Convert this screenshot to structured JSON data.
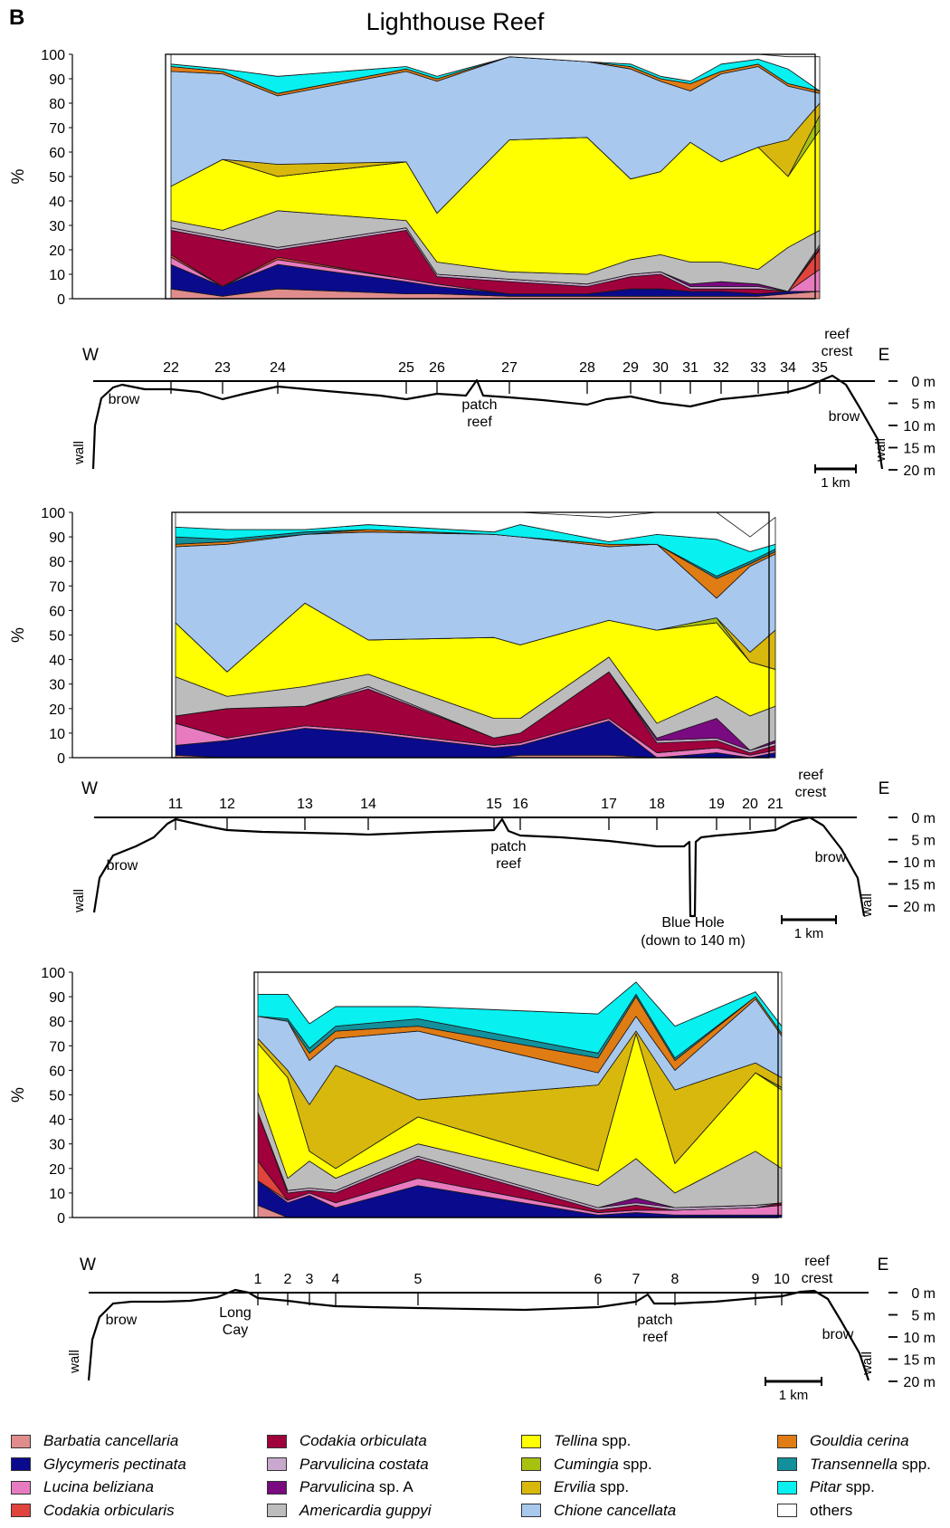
{
  "panel_letter": "B",
  "title": "Lighthouse Reef",
  "chart_data": [
    {
      "type": "area",
      "stacked": true,
      "ylabel": "%",
      "ylim": [
        0,
        100
      ],
      "yticks": [
        0,
        10,
        20,
        30,
        40,
        50,
        60,
        70,
        80,
        90,
        100
      ],
      "grid": false,
      "x_stations": [
        "22",
        "23",
        "24",
        "25",
        "26",
        "27",
        "28",
        "29",
        "30",
        "31",
        "32",
        "33",
        "34",
        "35"
      ],
      "x_km": [
        0,
        2.0,
        4.1,
        9.0,
        10.2,
        13.0,
        16.0,
        17.6,
        18.8,
        19.9,
        21.0,
        22.4,
        23.5,
        24.5
      ],
      "series": [
        {
          "key": "barbatia",
          "values": [
            4,
            1,
            4,
            2,
            2,
            1,
            1,
            1,
            1,
            1,
            1,
            1,
            2,
            3
          ]
        },
        {
          "key": "glycymeris",
          "values": [
            10,
            4,
            10,
            5,
            3,
            1,
            1,
            3,
            3,
            2,
            2,
            1,
            1,
            0
          ]
        },
        {
          "key": "lucina",
          "values": [
            3,
            0,
            2,
            1,
            1,
            0,
            0,
            0,
            0,
            0,
            0,
            0,
            0,
            9
          ]
        },
        {
          "key": "codakia_orbicularis",
          "values": [
            1,
            0,
            1,
            0,
            0,
            0,
            0,
            0,
            0,
            0,
            0,
            0,
            0,
            8
          ]
        },
        {
          "key": "codakia_orbiculata",
          "values": [
            10,
            19,
            3,
            20,
            3,
            5,
            3,
            5,
            6,
            1,
            1,
            2,
            0,
            1
          ]
        },
        {
          "key": "parvulicina_costata",
          "values": [
            1,
            1,
            1,
            1,
            1,
            1,
            1,
            1,
            1,
            1,
            1,
            1,
            0,
            1
          ]
        },
        {
          "key": "parvulicina_a",
          "values": [
            0,
            0,
            0,
            0,
            0,
            0,
            0,
            0,
            0,
            1,
            2,
            1,
            0,
            0
          ]
        },
        {
          "key": "americardia",
          "values": [
            3,
            3,
            15,
            3,
            5,
            3,
            4,
            6,
            7,
            9,
            8,
            6,
            18,
            6
          ]
        },
        {
          "key": "tellina",
          "values": [
            14,
            29,
            14,
            24,
            20,
            54,
            56,
            33,
            34,
            49,
            41,
            50,
            29,
            41
          ]
        },
        {
          "key": "cumingia",
          "values": [
            0,
            0,
            0,
            0,
            0,
            0,
            0,
            0,
            0,
            0,
            0,
            0,
            0,
            6
          ]
        },
        {
          "key": "ervilia",
          "values": [
            0,
            0,
            5,
            0,
            0,
            0,
            0,
            0,
            0,
            0,
            0,
            0,
            15,
            5
          ]
        },
        {
          "key": "chione",
          "values": [
            47,
            35,
            28,
            37,
            54,
            34,
            31,
            45,
            37,
            21,
            36,
            33,
            22,
            4
          ]
        },
        {
          "key": "gouldia",
          "values": [
            2,
            1,
            1,
            1,
            1,
            0,
            0,
            1,
            1,
            3,
            1,
            1,
            1,
            1
          ]
        },
        {
          "key": "transennella",
          "values": [
            0,
            0,
            0,
            0,
            0,
            0,
            0,
            0,
            0,
            0,
            0,
            0,
            0,
            0
          ]
        },
        {
          "key": "pitar",
          "values": [
            1,
            1,
            7,
            1,
            1,
            0,
            0,
            1,
            1,
            1,
            3,
            2,
            6,
            0
          ]
        },
        {
          "key": "others",
          "values": [
            4,
            6,
            9,
            5,
            9,
            1,
            3,
            4,
            9,
            11,
            4,
            4,
            5,
            14
          ]
        }
      ],
      "profile": {
        "directions": [
          "W",
          "E"
        ],
        "labels": [
          "brow",
          "patch reef",
          "reef crest",
          "brow",
          "wall",
          "wall"
        ],
        "depth_labels": [
          "0 m",
          "5 m",
          "10 m",
          "15 m",
          "20 m"
        ],
        "scale_label": "1 km"
      }
    },
    {
      "type": "area",
      "stacked": true,
      "ylabel": "%",
      "ylim": [
        0,
        100
      ],
      "yticks": [
        0,
        10,
        20,
        30,
        40,
        50,
        60,
        70,
        80,
        90,
        100
      ],
      "grid": false,
      "x_stations": [
        "11",
        "12",
        "13",
        "14",
        "15",
        "16",
        "17",
        "18",
        "19",
        "20",
        "21"
      ],
      "x_km": [
        0,
        1.3,
        3.3,
        4.9,
        8.2,
        8.8,
        11.1,
        12.3,
        13.9,
        14.8,
        15.3
      ],
      "series": [
        {
          "key": "barbatia",
          "values": [
            1,
            0,
            0,
            0,
            0,
            1,
            1,
            0,
            0,
            0,
            0
          ]
        },
        {
          "key": "glycymeris",
          "values": [
            4,
            7,
            12,
            10,
            4,
            4,
            14,
            0,
            2,
            0,
            2
          ]
        },
        {
          "key": "lucina",
          "values": [
            9,
            1,
            1,
            1,
            1,
            1,
            1,
            2,
            2,
            1,
            1
          ]
        },
        {
          "key": "codakia_orbicularis",
          "values": [
            0,
            0,
            0,
            0,
            0,
            0,
            0,
            0,
            0,
            0,
            0
          ]
        },
        {
          "key": "codakia_orbiculata",
          "values": [
            3,
            12,
            8,
            17,
            3,
            4,
            19,
            4,
            3,
            1,
            2
          ]
        },
        {
          "key": "parvulicina_costata",
          "values": [
            0,
            0,
            0,
            1,
            0,
            0,
            0,
            1,
            1,
            1,
            1
          ]
        },
        {
          "key": "parvulicina_a",
          "values": [
            0,
            0,
            0,
            0,
            0,
            0,
            0,
            1,
            8,
            0,
            1
          ]
        },
        {
          "key": "americardia",
          "values": [
            16,
            5,
            8,
            5,
            8,
            6,
            6,
            6,
            9,
            14,
            14
          ]
        },
        {
          "key": "tellina",
          "values": [
            22,
            10,
            34,
            14,
            33,
            30,
            15,
            38,
            30,
            22,
            15
          ]
        },
        {
          "key": "cumingia",
          "values": [
            0,
            0,
            0,
            0,
            0,
            0,
            0,
            0,
            2,
            0,
            0
          ]
        },
        {
          "key": "ervilia",
          "values": [
            0,
            0,
            0,
            0,
            0,
            0,
            0,
            0,
            0,
            4,
            16
          ]
        },
        {
          "key": "chione",
          "values": [
            31,
            52,
            28,
            44,
            42,
            44,
            30,
            35,
            8,
            35,
            31
          ]
        },
        {
          "key": "gouldia",
          "values": [
            1,
            1,
            0,
            1,
            0,
            0,
            1,
            0,
            8,
            1,
            1
          ]
        },
        {
          "key": "transennella",
          "values": [
            3,
            1,
            1,
            0,
            0,
            0,
            0,
            0,
            1,
            1,
            1
          ]
        },
        {
          "key": "pitar",
          "values": [
            4,
            4,
            1,
            2,
            1,
            5,
            1,
            4,
            15,
            4,
            2
          ]
        },
        {
          "key": "others",
          "values": [
            6,
            7,
            7,
            5,
            8,
            5,
            10,
            9,
            11,
            6,
            11
          ]
        }
      ],
      "profile": {
        "directions": [
          "W",
          "E"
        ],
        "labels": [
          "brow",
          "patch reef",
          "reef crest",
          "brow",
          "wall",
          "wall",
          "Blue Hole",
          "(down to 140 m)"
        ],
        "depth_labels": [
          "0 m",
          "5 m",
          "10 m",
          "15 m",
          "20 m"
        ],
        "scale_label": "1 km"
      }
    },
    {
      "type": "area",
      "stacked": true,
      "ylabel": "%",
      "ylim": [
        0,
        100
      ],
      "yticks": [
        0,
        10,
        20,
        30,
        40,
        50,
        60,
        70,
        80,
        90,
        100
      ],
      "grid": false,
      "x_stations": [
        "1",
        "2",
        "3",
        "4",
        "5",
        "6",
        "7",
        "8",
        "9",
        "10"
      ],
      "x_km": [
        0,
        0.9,
        1.5,
        2.2,
        4.4,
        9.0,
        10.3,
        11.3,
        13.5,
        14.3
      ],
      "series": [
        {
          "key": "barbatia",
          "values": [
            5,
            0,
            0,
            0,
            0,
            0,
            0,
            0,
            0,
            0
          ]
        },
        {
          "key": "glycymeris",
          "values": [
            10,
            6,
            9,
            4,
            13,
            1,
            2,
            1,
            1,
            1
          ]
        },
        {
          "key": "lucina",
          "values": [
            0,
            1,
            1,
            2,
            3,
            1,
            1,
            2,
            3,
            4
          ]
        },
        {
          "key": "codakia_orbicularis",
          "values": [
            8,
            0,
            0,
            0,
            0,
            0,
            0,
            0,
            0,
            0
          ]
        },
        {
          "key": "codakia_orbiculata",
          "values": [
            20,
            3,
            1,
            4,
            8,
            1,
            2,
            0,
            0,
            1
          ]
        },
        {
          "key": "parvulicina_costata",
          "values": [
            0,
            1,
            1,
            1,
            1,
            1,
            1,
            1,
            1,
            0
          ]
        },
        {
          "key": "parvulicina_a",
          "values": [
            0,
            0,
            0,
            0,
            0,
            0,
            2,
            0,
            0,
            0
          ]
        },
        {
          "key": "americardia",
          "values": [
            8,
            5,
            11,
            5,
            5,
            9,
            16,
            6,
            22,
            14
          ]
        },
        {
          "key": "tellina",
          "values": [
            20,
            41,
            4,
            4,
            11,
            6,
            51,
            12,
            32,
            32
          ]
        },
        {
          "key": "cumingia",
          "values": [
            0,
            0,
            0,
            0,
            0,
            0,
            0,
            0,
            0,
            1
          ]
        },
        {
          "key": "ervilia",
          "values": [
            2,
            3,
            19,
            42,
            7,
            35,
            1,
            30,
            4,
            4
          ]
        },
        {
          "key": "chione",
          "values": [
            9,
            20,
            18,
            11,
            28,
            5,
            6,
            8,
            26,
            17
          ]
        },
        {
          "key": "gouldia",
          "values": [
            0,
            0,
            3,
            3,
            2,
            6,
            8,
            4,
            1,
            1
          ]
        },
        {
          "key": "transennella",
          "values": [
            0,
            1,
            2,
            2,
            3,
            2,
            1,
            1,
            0,
            0
          ]
        },
        {
          "key": "pitar",
          "values": [
            9,
            10,
            10,
            8,
            5,
            16,
            5,
            13,
            2,
            3
          ]
        },
        {
          "key": "others",
          "values": [
            9,
            9,
            21,
            14,
            14,
            17,
            4,
            22,
            8,
            22
          ]
        }
      ],
      "profile": {
        "directions": [
          "W",
          "E"
        ],
        "labels": [
          "brow",
          "Long Cay",
          "patch reef",
          "reef crest",
          "brow",
          "wall",
          "wall"
        ],
        "depth_labels": [
          "0 m",
          "5 m",
          "10 m",
          "15 m",
          "20 m"
        ],
        "scale_label": "1 km"
      }
    }
  ],
  "legend": [
    {
      "key": "barbatia",
      "italic": "Barbatia cancellaria",
      "rest": "",
      "color": "#e08c8c"
    },
    {
      "key": "glycymeris",
      "italic": "Glycymeris pectinata",
      "rest": "",
      "color": "#0a0a8c"
    },
    {
      "key": "lucina",
      "italic": "Lucina beliziana",
      "rest": "",
      "color": "#e87bc0"
    },
    {
      "key": "codakia_orbicularis",
      "italic": "Codakia orbicularis",
      "rest": "",
      "color": "#e0443c"
    },
    {
      "key": "codakia_orbiculata",
      "italic": "Codakia orbiculata",
      "rest": "",
      "color": "#a0003c"
    },
    {
      "key": "parvulicina_costata",
      "italic": "Parvulicina costata",
      "rest": "",
      "color": "#c8a8cc"
    },
    {
      "key": "parvulicina_a",
      "italic": "Parvulicina",
      "rest": " sp. A",
      "color": "#7a0a80"
    },
    {
      "key": "americardia",
      "italic": "Americardia guppyi",
      "rest": "",
      "color": "#bcbcbc"
    },
    {
      "key": "tellina",
      "italic": "Tellina",
      "rest": " spp.",
      "color": "#ffff00"
    },
    {
      "key": "cumingia",
      "italic": "Cumingia",
      "rest": " spp.",
      "color": "#a8c010"
    },
    {
      "key": "ervilia",
      "italic": "Ervilia",
      "rest": " spp.",
      "color": "#d8b80c"
    },
    {
      "key": "chione",
      "italic": "Chione cancellata",
      "rest": "",
      "color": "#a8c8ee"
    },
    {
      "key": "gouldia",
      "italic": "Gouldia cerina",
      "rest": "",
      "color": "#e07c14"
    },
    {
      "key": "transennella",
      "italic": "Transennella",
      "rest": " spp.",
      "color": "#12909c"
    },
    {
      "key": "pitar",
      "italic": "Pitar",
      "rest": " spp.",
      "color": "#08f0f0"
    },
    {
      "key": "others",
      "italic": "",
      "rest": "others",
      "color": "#ffffff"
    }
  ]
}
